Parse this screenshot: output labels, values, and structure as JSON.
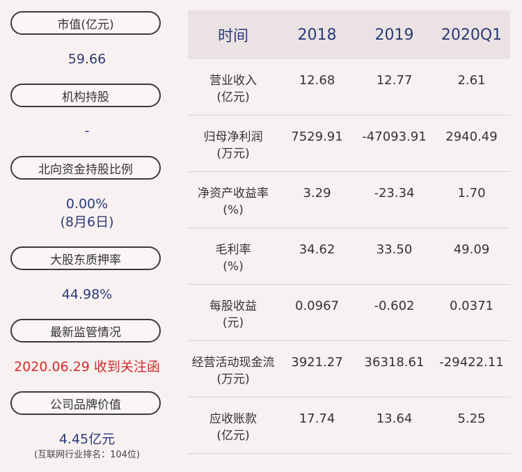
{
  "left": {
    "market_cap": {
      "label": "市值(亿元)",
      "value": "59.66"
    },
    "institution": {
      "label": "机构持股",
      "value": "-"
    },
    "northbound": {
      "label": "北向资金持股比例",
      "value": "0.00%",
      "note": "(8月6日)"
    },
    "pledge": {
      "label": "大股东质押率",
      "value": "44.98%"
    },
    "regulation": {
      "label": "最新监管情况",
      "value": "2020.06.29 收到关注函"
    },
    "brand": {
      "label": "公司品牌价值",
      "value": "4.45亿元",
      "note": "(互联网行业排名：104位)"
    }
  },
  "table": {
    "headers": [
      "时间",
      "2018",
      "2019",
      "2020Q1"
    ],
    "rows": [
      {
        "label": "营业收入",
        "unit": "(亿元)",
        "values": [
          "12.68",
          "12.77",
          "2.61"
        ]
      },
      {
        "label": "归母净利润",
        "unit": "(万元)",
        "values": [
          "7529.91",
          "-47093.91",
          "2940.49"
        ]
      },
      {
        "label": "净资产收益率",
        "unit": "(%)",
        "values": [
          "3.29",
          "-23.34",
          "1.70"
        ]
      },
      {
        "label": "毛利率",
        "unit": "(%)",
        "values": [
          "34.62",
          "33.50",
          "49.09"
        ]
      },
      {
        "label": "每股收益",
        "unit": "(元)",
        "values": [
          "0.0967",
          "-0.602",
          "0.0371"
        ]
      },
      {
        "label": "经营活动现金流",
        "unit": "(万元)",
        "values": [
          "3921.27",
          "36318.61",
          "-29422.11"
        ]
      },
      {
        "label": "应收账款",
        "unit": "(亿元)",
        "values": [
          "17.74",
          "13.64",
          "5.25"
        ]
      }
    ]
  }
}
